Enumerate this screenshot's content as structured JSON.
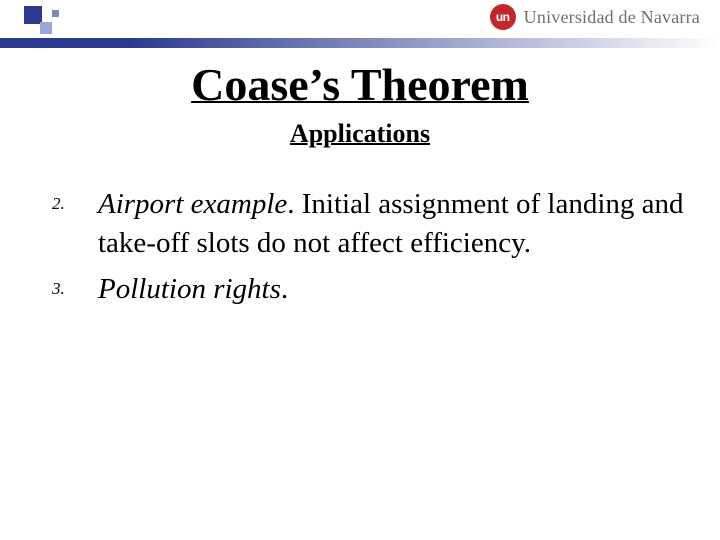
{
  "colors": {
    "accent": "#2b3a8f",
    "accent_light": "#9aa6d6",
    "badge_bg": "#c1272d",
    "uni_text": "#6e6e6e",
    "title": "#000000",
    "body": "#000000"
  },
  "header": {
    "badge_text": "un",
    "university": "Universidad de Navarra"
  },
  "title": "Coase’s Theorem",
  "subtitle": "Applications",
  "items": [
    {
      "marker": "2.",
      "emph": "Airport example",
      "rest": ". Initial assignment of landing and take-off slots do not affect efficiency."
    },
    {
      "marker": "3.",
      "emph": "Pollution rights",
      "rest": "."
    }
  ]
}
